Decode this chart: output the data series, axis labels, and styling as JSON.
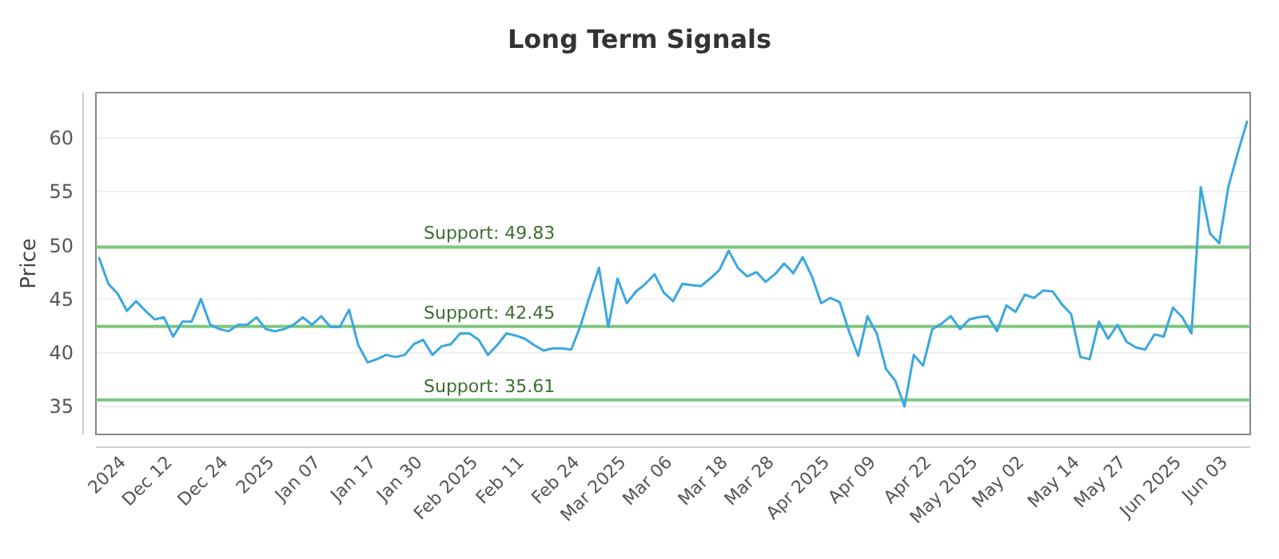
{
  "chart_data": {
    "type": "line",
    "title": "Long Term Signals",
    "ylabel": "Price",
    "categories": [
      null,
      null,
      null,
      "2024",
      null,
      null,
      null,
      null,
      "Dec 12",
      null,
      null,
      null,
      null,
      null,
      "Dec 24",
      null,
      null,
      null,
      null,
      "2025",
      null,
      null,
      null,
      null,
      "Jan 07",
      null,
      null,
      null,
      null,
      null,
      "Jan 17",
      null,
      null,
      null,
      null,
      "Jan 30",
      null,
      null,
      null,
      null,
      null,
      "Feb 2025",
      null,
      null,
      null,
      null,
      "Feb 11",
      null,
      null,
      null,
      null,
      null,
      "Feb 24",
      null,
      null,
      null,
      null,
      "Mar 2025",
      null,
      null,
      null,
      null,
      "Mar 06",
      null,
      null,
      null,
      null,
      null,
      "Mar 18",
      null,
      null,
      null,
      null,
      "Mar 28",
      null,
      null,
      null,
      null,
      null,
      "Apr 2025",
      null,
      null,
      null,
      null,
      "Apr 09",
      null,
      null,
      null,
      null,
      null,
      "Apr 22",
      null,
      null,
      null,
      null,
      "May 2025",
      null,
      null,
      null,
      null,
      "May 02",
      null,
      null,
      null,
      null,
      null,
      "May 14",
      null,
      null,
      null,
      null,
      "May 27",
      null,
      null,
      null,
      null,
      null,
      "Jun 2025",
      null,
      null,
      null,
      null,
      "Jun 03",
      null,
      null
    ],
    "series": [
      {
        "color": "#3ba7de",
        "values": [
          48.8,
          46.4,
          45.5,
          43.9,
          44.8,
          43.9,
          43.1,
          43.3,
          41.5,
          42.9,
          42.9,
          45.0,
          42.6,
          42.2,
          42.0,
          42.6,
          42.6,
          43.3,
          42.2,
          42.0,
          42.2,
          42.6,
          43.3,
          42.6,
          43.4,
          42.4,
          42.4,
          44.0,
          40.7,
          39.1,
          39.4,
          39.8,
          39.6,
          39.8,
          40.8,
          41.2,
          39.8,
          40.6,
          40.8,
          41.8,
          41.8,
          41.2,
          39.8,
          40.7,
          41.8,
          41.6,
          41.3,
          40.7,
          40.2,
          40.4,
          40.4,
          40.3,
          42.5,
          45.3,
          47.9,
          42.4,
          46.9,
          44.6,
          45.7,
          46.4,
          47.3,
          45.6,
          44.8,
          46.4,
          46.3,
          46.2,
          46.9,
          47.7,
          49.5,
          47.9,
          47.1,
          47.5,
          46.6,
          47.3,
          48.3,
          47.4,
          48.9,
          47.1,
          44.6,
          45.1,
          44.7,
          42.0,
          39.7,
          43.4,
          41.8,
          38.5,
          37.4,
          35.0,
          39.8,
          38.8,
          42.2,
          42.7,
          43.4,
          42.2,
          43.1,
          43.3,
          43.4,
          42.0,
          44.4,
          43.8,
          45.4,
          45.1,
          45.8,
          45.7,
          44.5,
          43.6,
          39.6,
          39.4,
          42.9,
          41.3,
          42.6,
          41.0,
          40.5,
          40.3,
          41.7,
          41.5,
          44.2,
          43.3,
          41.8,
          55.4,
          51.1,
          50.2,
          55.5,
          58.6,
          61.5
        ]
      }
    ],
    "ylim": [
      32.4,
      64.2
    ],
    "yticks": [
      35,
      40,
      45,
      50,
      55,
      60
    ],
    "grid": "y",
    "marker": "none",
    "line_style": "solid",
    "ref_lines": [
      {
        "axis": "y",
        "value": 49.83,
        "label": "Support: 49.83",
        "color": "#7fc77f"
      },
      {
        "axis": "y",
        "value": 42.45,
        "label": "Support: 42.45",
        "color": "#7fc77f"
      },
      {
        "axis": "y",
        "value": 35.61,
        "label": "Support: 35.61",
        "color": "#7fc77f"
      }
    ]
  }
}
